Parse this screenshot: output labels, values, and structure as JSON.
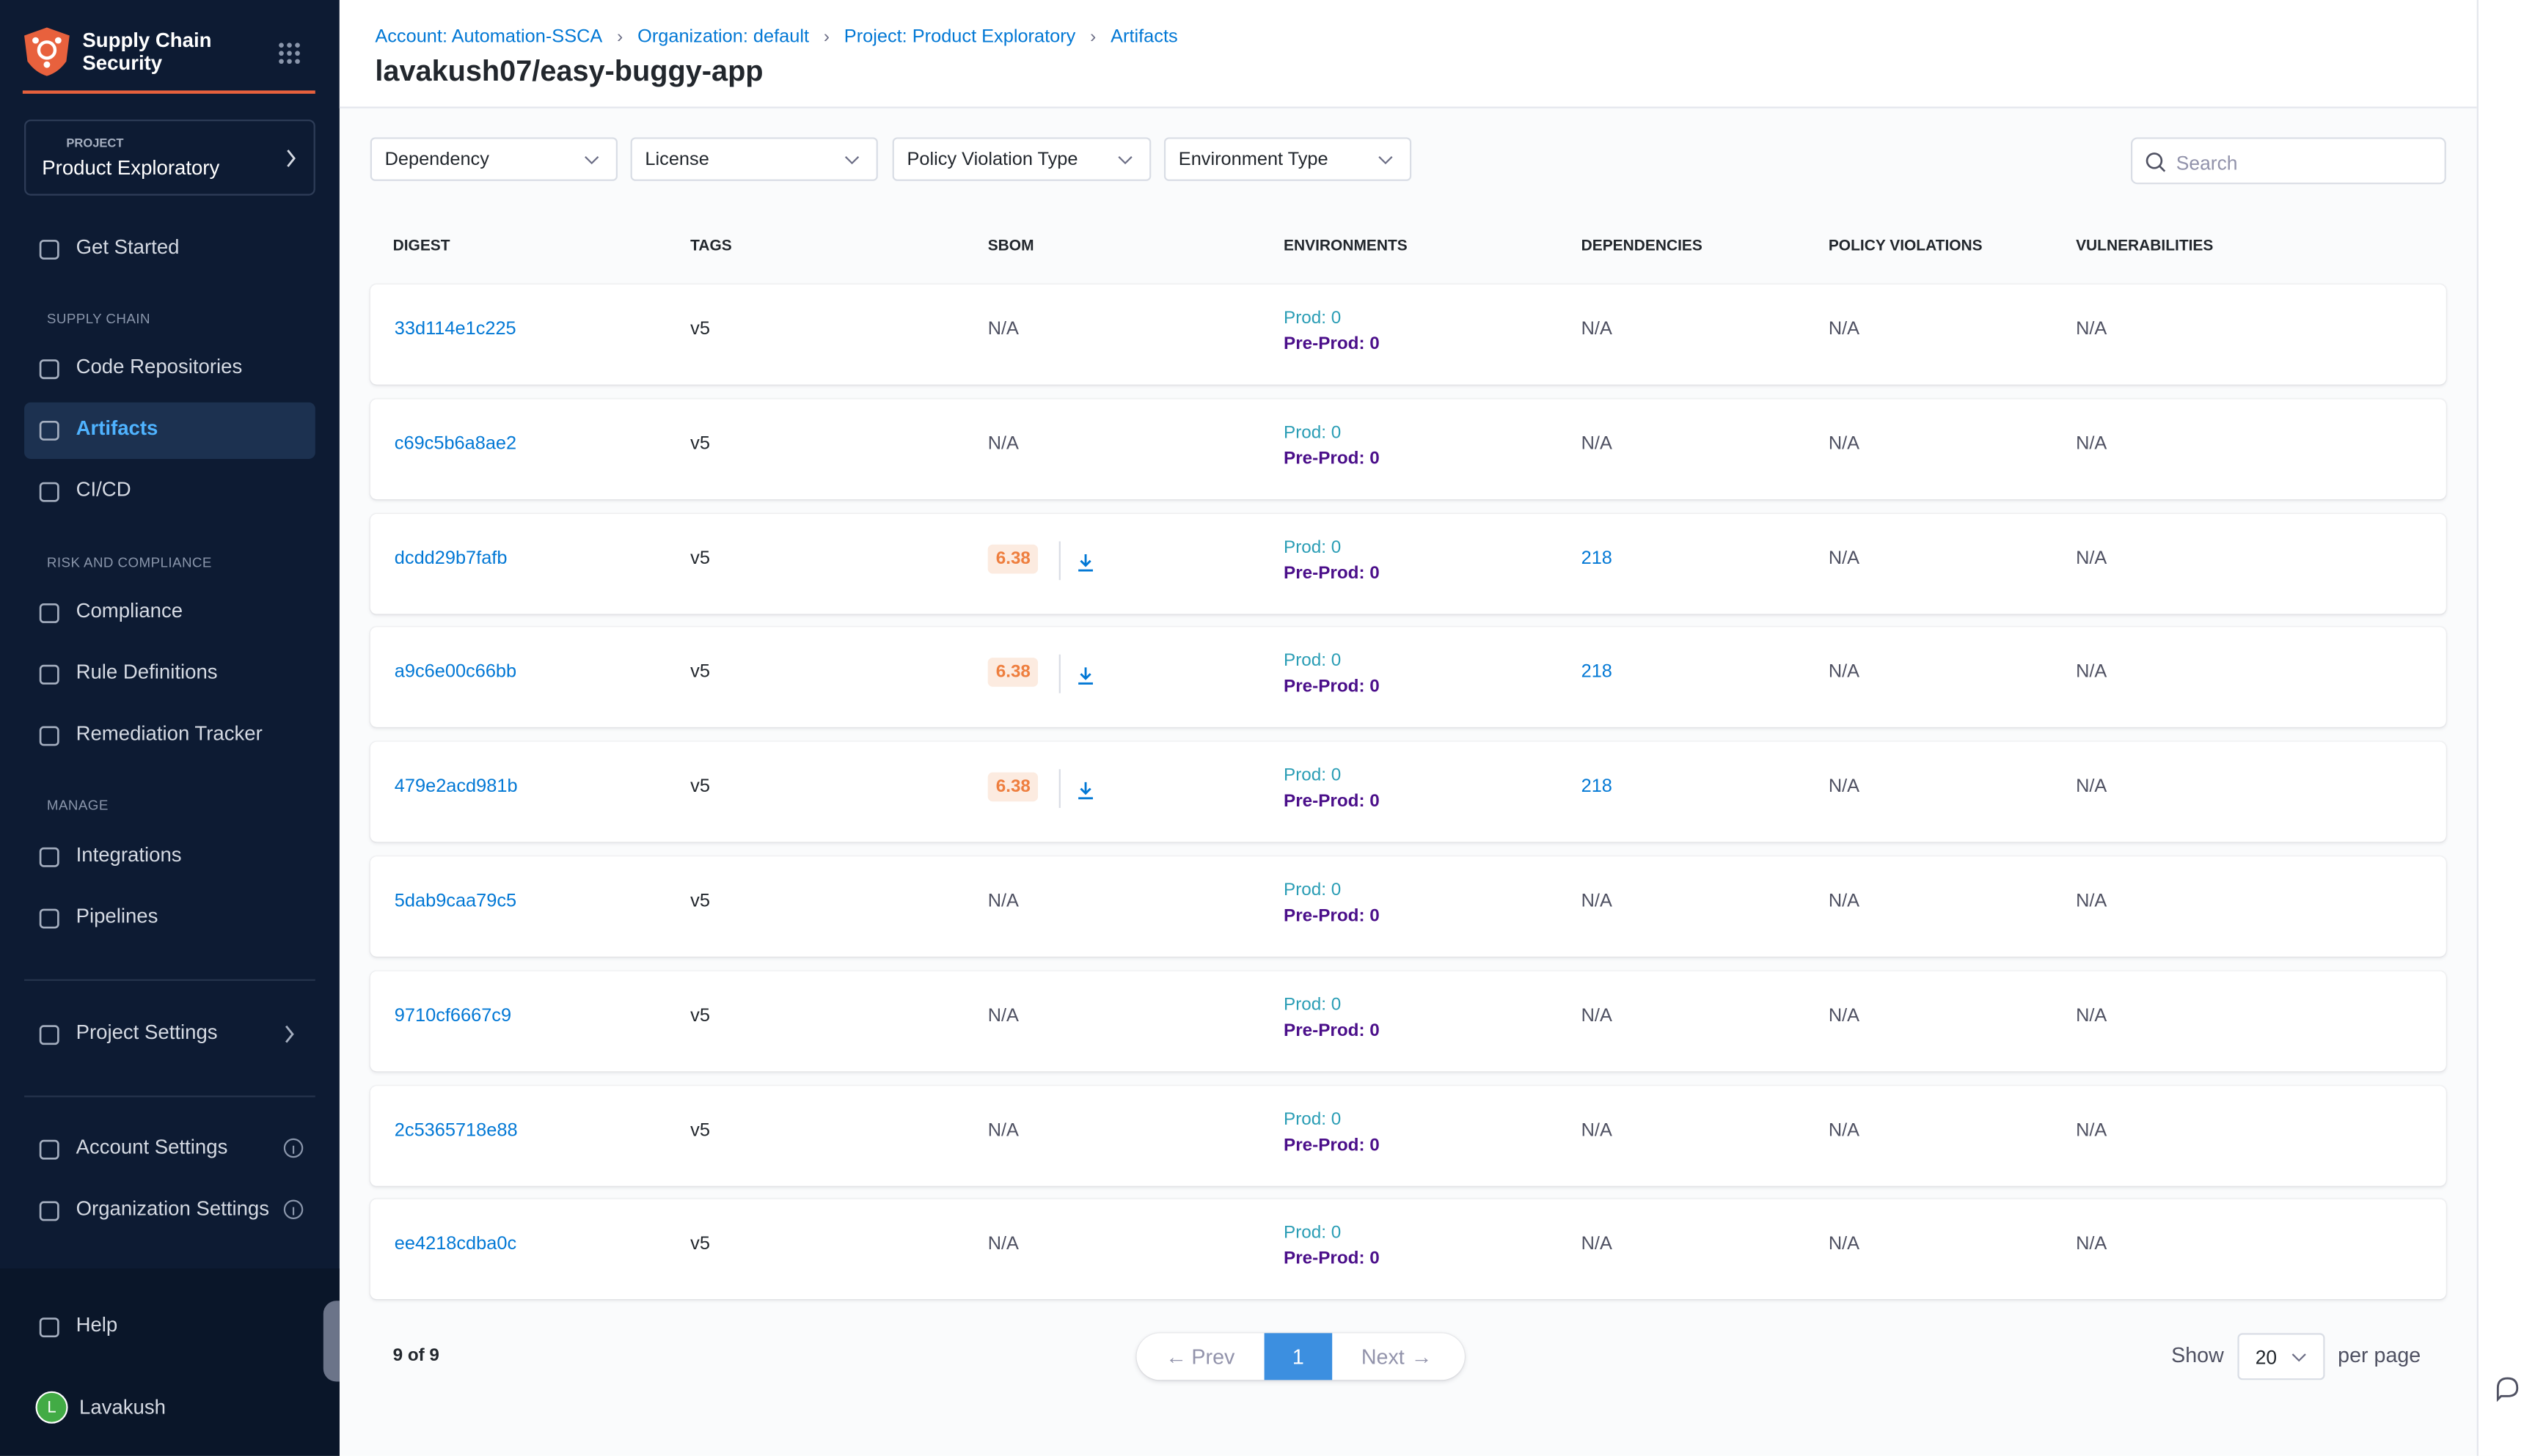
{
  "sidebar": {
    "title": "Supply Chain Security",
    "project": {
      "label": "PROJECT",
      "name": "Product Exploratory"
    },
    "groups": [
      {
        "items": [
          {
            "label": "Get Started"
          }
        ]
      },
      {
        "heading": "SUPPLY CHAIN",
        "items": [
          {
            "label": "Code Repositories"
          },
          {
            "label": "Artifacts",
            "active": true
          },
          {
            "label": "CI/CD"
          }
        ]
      },
      {
        "heading": "RISK AND COMPLIANCE",
        "items": [
          {
            "label": "Compliance"
          },
          {
            "label": "Rule Definitions"
          },
          {
            "label": "Remediation Tracker"
          }
        ]
      },
      {
        "heading": "MANAGE",
        "items": [
          {
            "label": "Integrations"
          },
          {
            "label": "Pipelines"
          }
        ]
      }
    ],
    "project_settings": "Project Settings",
    "account_items": [
      "Account Settings",
      "Organization Settings"
    ],
    "help": "Help",
    "user": {
      "initial": "L",
      "name": "Lavakush"
    }
  },
  "header": {
    "breadcrumbs": [
      "Account: Automation-SSCA",
      "Organization: default",
      "Project: Product Exploratory",
      "Artifacts"
    ],
    "title": "lavakush07/easy-buggy-app"
  },
  "filters": [
    "Dependency",
    "License",
    "Policy Violation Type",
    "Environment Type"
  ],
  "search_placeholder": "Search",
  "table": {
    "columns": [
      "DIGEST",
      "TAGS",
      "SBOM",
      "ENVIRONMENTS",
      "DEPENDENCIES",
      "POLICY VIOLATIONS",
      "VULNERABILITIES"
    ],
    "rows": [
      {
        "digest": "33d114e1c225",
        "tags": "v5",
        "sbom": "N/A",
        "prod": "Prod: 0",
        "preprod": "Pre-Prod: 0",
        "dependencies": "N/A",
        "policy_violations": "N/A",
        "vulnerabilities": "N/A"
      },
      {
        "digest": "c69c5b6a8ae2",
        "tags": "v5",
        "sbom": "N/A",
        "prod": "Prod: 0",
        "preprod": "Pre-Prod: 0",
        "dependencies": "N/A",
        "policy_violations": "N/A",
        "vulnerabilities": "N/A"
      },
      {
        "digest": "dcdd29b7fafb",
        "tags": "v5",
        "sbom": 6.38,
        "prod": "Prod: 0",
        "preprod": "Pre-Prod: 0",
        "dependencies": 218,
        "policy_violations": "N/A",
        "vulnerabilities": "N/A"
      },
      {
        "digest": "a9c6e00c66bb",
        "tags": "v5",
        "sbom": 6.38,
        "prod": "Prod: 0",
        "preprod": "Pre-Prod: 0",
        "dependencies": 218,
        "policy_violations": "N/A",
        "vulnerabilities": "N/A"
      },
      {
        "digest": "479e2acd981b",
        "tags": "v5",
        "sbom": 6.38,
        "prod": "Prod: 0",
        "preprod": "Pre-Prod: 0",
        "dependencies": 218,
        "policy_violations": "N/A",
        "vulnerabilities": "N/A"
      },
      {
        "digest": "5dab9caa79c5",
        "tags": "v5",
        "sbom": "N/A",
        "prod": "Prod: 0",
        "preprod": "Pre-Prod: 0",
        "dependencies": "N/A",
        "policy_violations": "N/A",
        "vulnerabilities": "N/A"
      },
      {
        "digest": "9710cf6667c9",
        "tags": "v5",
        "sbom": "N/A",
        "prod": "Prod: 0",
        "preprod": "Pre-Prod: 0",
        "dependencies": "N/A",
        "policy_violations": "N/A",
        "vulnerabilities": "N/A"
      },
      {
        "digest": "2c5365718e88",
        "tags": "v5",
        "sbom": "N/A",
        "prod": "Prod: 0",
        "preprod": "Pre-Prod: 0",
        "dependencies": "N/A",
        "policy_violations": "N/A",
        "vulnerabilities": "N/A"
      },
      {
        "digest": "ee4218cdba0c",
        "tags": "v5",
        "sbom": "N/A",
        "prod": "Prod: 0",
        "preprod": "Pre-Prod: 0",
        "dependencies": "N/A",
        "policy_violations": "N/A",
        "vulnerabilities": "N/A"
      }
    ]
  },
  "pagination": {
    "count": "9 of 9",
    "prev": "Prev",
    "page": 1,
    "next": "Next",
    "show": "Show",
    "page_size": 20,
    "per_page": "per page"
  }
}
